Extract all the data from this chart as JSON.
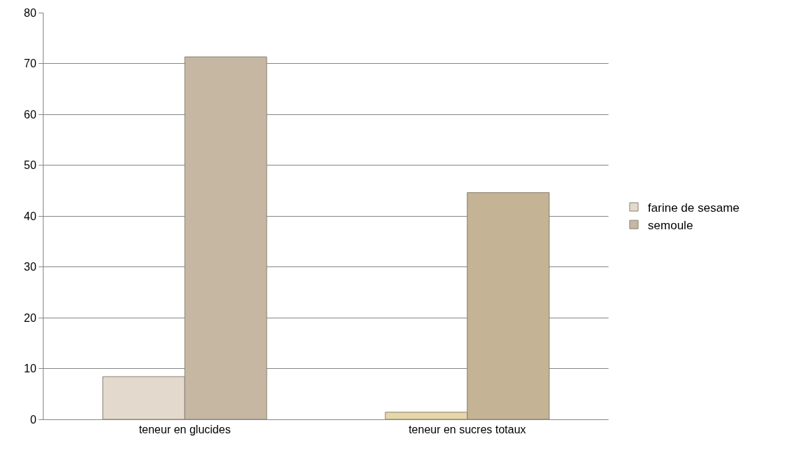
{
  "chart_data": {
    "type": "bar",
    "categories": [
      "teneur en glucides",
      "teneur en sucres totaux"
    ],
    "series": [
      {
        "name": "farine de sesame",
        "colors": [
          "#e3dacd",
          "#e6d7a8"
        ],
        "values": [
          8.4,
          1.4
        ]
      },
      {
        "name": "semoule",
        "colors": [
          "#c6b7a3",
          "#c4b394"
        ],
        "values": [
          71.3,
          44.6
        ]
      }
    ],
    "ylim": [
      0,
      80
    ],
    "yticks": [
      0,
      10,
      20,
      30,
      40,
      50,
      60,
      70,
      80
    ],
    "grid": "y",
    "legend": "right"
  }
}
